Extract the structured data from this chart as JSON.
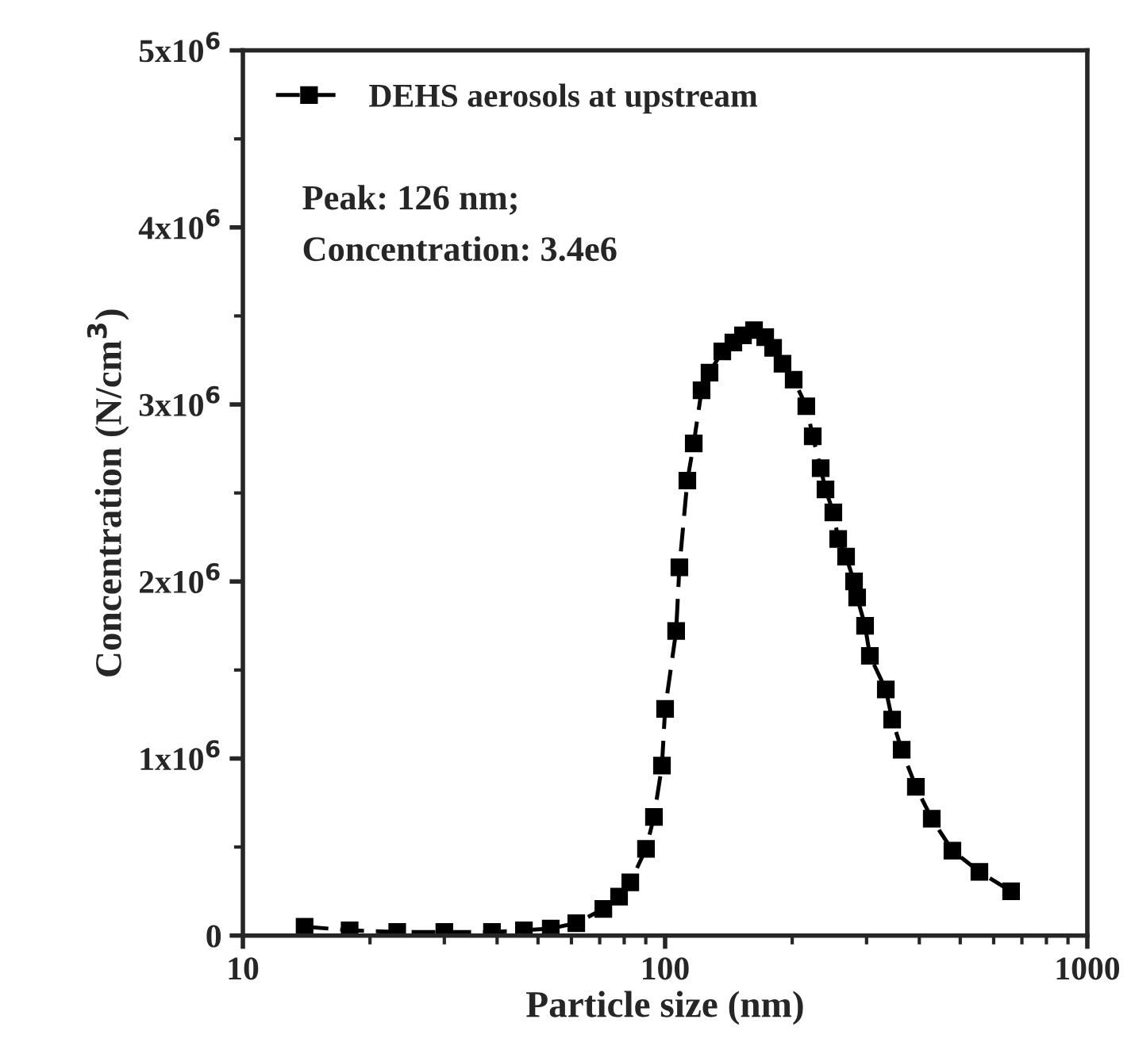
{
  "chart_data": {
    "type": "line",
    "xlabel": "Particle size (nm)",
    "ylabel": "Concentration (N/cm$^{3}$)",
    "annotations": [
      "Peak: 126 nm;",
      "Concentration: 3.4e6"
    ],
    "log": "x",
    "xlim": [
      10,
      1000
    ],
    "xticks": [
      10,
      100,
      1000
    ],
    "ylim": [
      0,
      5000000
    ],
    "yticks": [
      {
        "value": 0,
        "label": "0"
      },
      {
        "value": 1000000,
        "label": "1x10$^{6}$"
      },
      {
        "value": 2000000,
        "label": "2x10$^{6}$"
      },
      {
        "value": 3000000,
        "label": "3x10$^{6}$"
      },
      {
        "value": 4000000,
        "label": "4x10$^{6}$"
      },
      {
        "value": 5000000,
        "label": "5x10$^{6}$"
      }
    ],
    "legend": "top left",
    "marker": "square",
    "line_style": "dashed",
    "grid": false,
    "series": [
      {
        "name": "DEHS aerosols at upstream",
        "color": "#000000",
        "x": [
          14.0,
          17.9,
          23.2,
          30.0,
          38.9,
          46.3,
          53.6,
          61.6,
          71.4,
          77.8,
          82.7,
          90.1,
          94.1,
          98.3,
          100,
          106.2,
          108.1,
          112.9,
          116.9,
          122.0,
          127.4,
          136.6,
          145.1,
          152.9,
          162.4,
          172.6,
          180.2,
          189.7,
          201.6,
          216.0,
          223.7,
          233.6,
          239.8,
          250.3,
          257.0,
          268.3,
          280.2,
          285.0,
          297.6,
          305.5,
          333.2,
          344.9,
          363.3,
          392.6,
          428.1,
          479.1,
          555.1,
          659.9
        ],
        "values": [
          50000,
          30000,
          20000,
          20000,
          20000,
          30000,
          40000,
          70000,
          150000,
          220000,
          300000,
          490000,
          670000,
          960000,
          1280000,
          1720000,
          2080000,
          2570000,
          2780000,
          3080000,
          3180000,
          3300000,
          3350000,
          3390000,
          3420000,
          3380000,
          3320000,
          3230000,
          3140000,
          2990000,
          2820000,
          2640000,
          2520000,
          2390000,
          2240000,
          2140000,
          2000000,
          1910000,
          1750000,
          1580000,
          1390000,
          1220000,
          1050000,
          840000,
          660000,
          480000,
          360000,
          250000
        ]
      }
    ]
  }
}
